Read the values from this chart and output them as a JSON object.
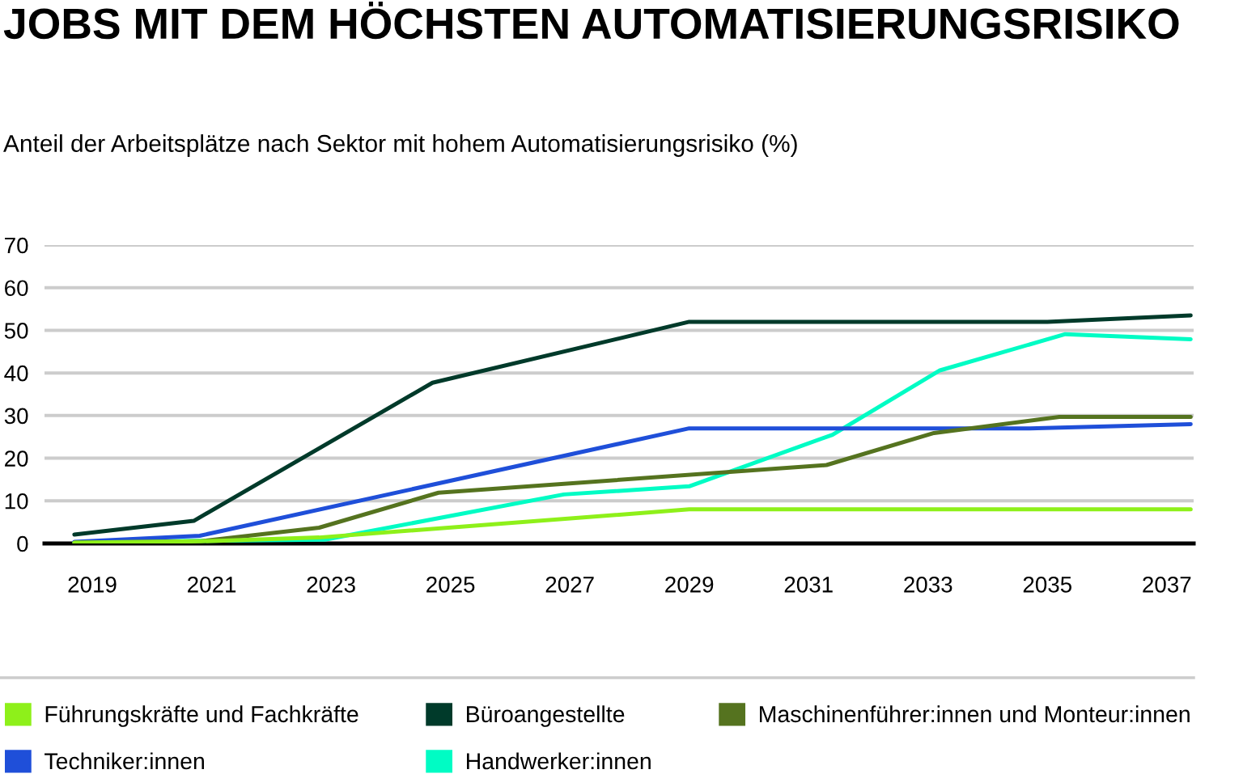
{
  "chart_data": {
    "type": "line",
    "title": "JOBS MIT DEM HÖCHSTEN AUTOMATISIERUNGSRISIKO",
    "subtitle": "Anteil der Arbeitsplätze nach Sektor mit hohem Automatisierungsrisiko (%)",
    "xlim": [
      2018.2,
      2037.45
    ],
    "xticks": [
      2019,
      2021,
      2023,
      2025,
      2027,
      2029,
      2031,
      2033,
      2035,
      2037
    ],
    "ylim": [
      0,
      70
    ],
    "yticks": [
      0,
      10,
      20,
      30,
      40,
      50,
      60,
      70
    ],
    "grid": "y",
    "legend": "bottom",
    "series": [
      {
        "name": "Führungskräfte und Fachkräfte",
        "color": "#8ef01a",
        "x": [
          2018.7,
          2020.8,
          2022.8,
          2029.0,
          2037.4
        ],
        "values": [
          0.2,
          0.5,
          1.4,
          8.0,
          8.0
        ]
      },
      {
        "name": "Büroangestellte",
        "color": "#003a2a",
        "x": [
          2018.7,
          2020.7,
          2024.7,
          2029.0,
          2035.0,
          2037.4
        ],
        "values": [
          2.1,
          5.3,
          37.7,
          52.0,
          52.0,
          53.5
        ]
      },
      {
        "name": "Maschinenführer:innen und Monteur:innen",
        "color": "#55731f",
        "x": [
          2018.7,
          2020.8,
          2022.8,
          2024.8,
          2031.3,
          2033.1,
          2035.2,
          2037.4
        ],
        "values": [
          0.2,
          0.5,
          3.7,
          11.9,
          18.4,
          25.9,
          29.7,
          29.7
        ]
      },
      {
        "name": "Techniker:innen",
        "color": "#1f4fd9",
        "x": [
          2018.7,
          2020.8,
          2029.0,
          2034.7,
          2037.4
        ],
        "values": [
          0.4,
          1.8,
          27.0,
          27.0,
          28.0
        ]
      },
      {
        "name": "Handwerker:innen",
        "color": "#00fcc4",
        "x": [
          2018.7,
          2020.8,
          2022.9,
          2026.9,
          2029.0,
          2031.4,
          2033.2,
          2035.3,
          2037.4
        ],
        "values": [
          0.3,
          0.6,
          0.9,
          11.5,
          13.4,
          25.5,
          40.6,
          49.1,
          47.9
        ]
      }
    ]
  }
}
